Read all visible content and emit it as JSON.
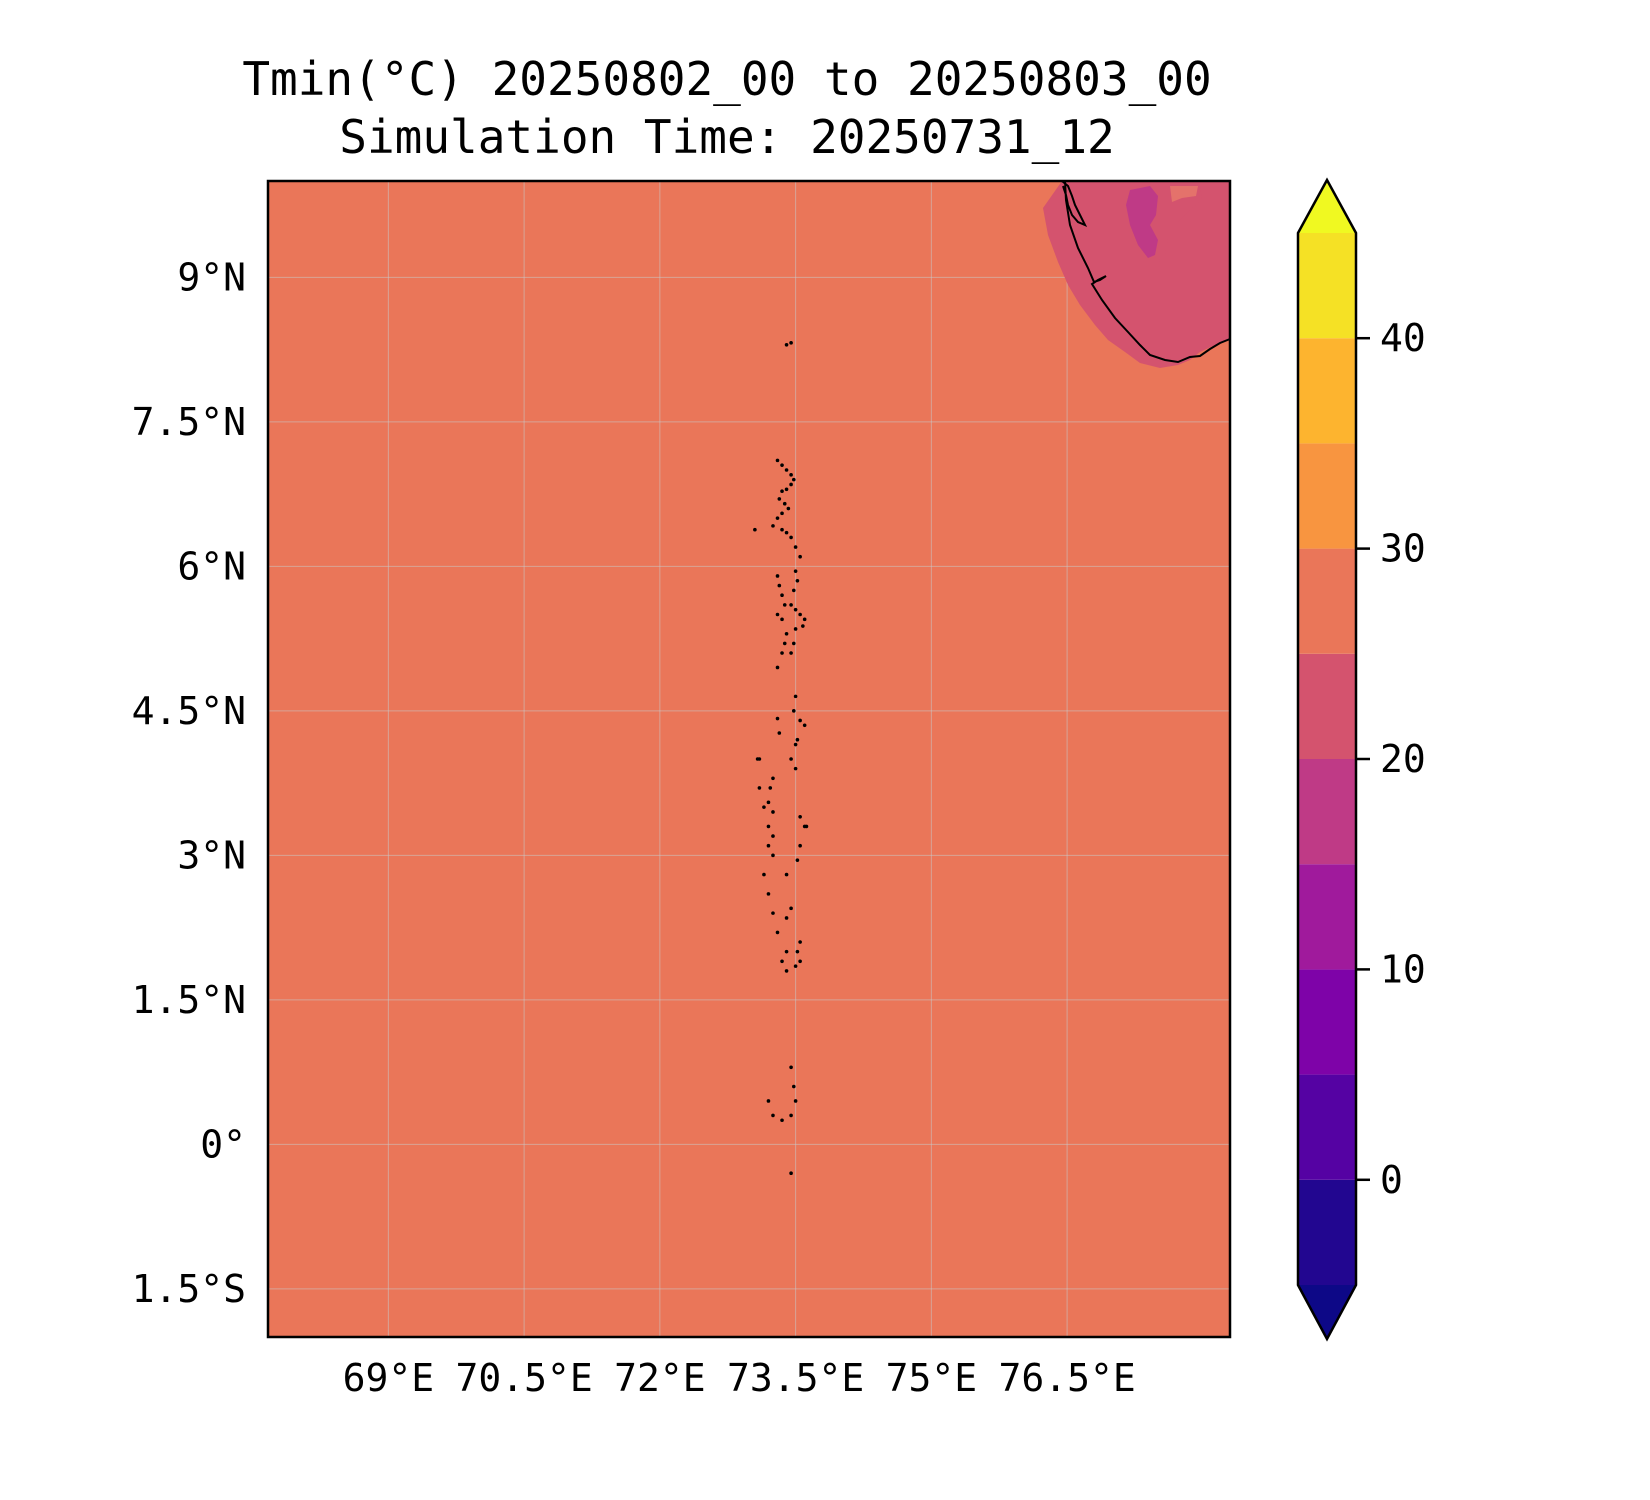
{
  "title": {
    "line1": "Tmin(°C) 20250802_00 to 20250803_00",
    "line2": "Simulation Time: 20250731_12"
  },
  "map": {
    "lon_range": [
      67.67,
      78.3
    ],
    "lat_range": [
      -2.0,
      10.0
    ],
    "background_value_c": 28,
    "land_fill": "#d4536e",
    "land_inner_fill": "#bf3a86",
    "ocean_fill": "#ea7659",
    "coastline_color": "#000000",
    "x_ticks": [
      {
        "lon": 69.0,
        "label": "69°E"
      },
      {
        "lon": 70.5,
        "label": "70.5°E"
      },
      {
        "lon": 72.0,
        "label": "72°E"
      },
      {
        "lon": 73.5,
        "label": "73.5°E"
      },
      {
        "lon": 75.0,
        "label": "75°E"
      },
      {
        "lon": 76.5,
        "label": "76.5°E"
      }
    ],
    "y_ticks": [
      {
        "lat": 9.0,
        "label": "9°N"
      },
      {
        "lat": 7.5,
        "label": "7.5°N"
      },
      {
        "lat": 6.0,
        "label": "6°N"
      },
      {
        "lat": 4.5,
        "label": "4.5°N"
      },
      {
        "lat": 3.0,
        "label": "3°N"
      },
      {
        "lat": 1.5,
        "label": "1.5°N"
      },
      {
        "lat": 0.0,
        "label": "0°"
      },
      {
        "lat": -1.5,
        "label": "1.5°S"
      }
    ],
    "grid": true,
    "grid_color": "#c9c9c9"
  },
  "colorbar": {
    "min": -5,
    "max": 45,
    "extend": "both",
    "orientation": "vertical",
    "levels": [
      {
        "from": -5,
        "to": 0,
        "color": "#220690"
      },
      {
        "from": 0,
        "to": 5,
        "color": "#5502a3"
      },
      {
        "from": 5,
        "to": 10,
        "color": "#7e03a8"
      },
      {
        "from": 10,
        "to": 15,
        "color": "#a01a9c"
      },
      {
        "from": 15,
        "to": 20,
        "color": "#bf3a86"
      },
      {
        "from": 20,
        "to": 25,
        "color": "#d4536e"
      },
      {
        "from": 25,
        "to": 30,
        "color": "#ea7659"
      },
      {
        "from": 30,
        "to": 35,
        "color": "#f89540"
      },
      {
        "from": 35,
        "to": 40,
        "color": "#fdb42f"
      },
      {
        "from": 40,
        "to": 45,
        "color": "#f5e125"
      }
    ],
    "under_color": "#0d0887",
    "over_color": "#f0f921",
    "ticks": [
      {
        "value": 0,
        "label": "0"
      },
      {
        "value": 10,
        "label": "10"
      },
      {
        "value": 20,
        "label": "20"
      },
      {
        "value": 30,
        "label": "30"
      },
      {
        "value": 40,
        "label": "40"
      }
    ]
  },
  "islands": [
    [
      73.4,
      8.3
    ],
    [
      73.45,
      8.32
    ],
    [
      73.3,
      7.1
    ],
    [
      73.35,
      7.05
    ],
    [
      73.4,
      7.0
    ],
    [
      73.45,
      6.95
    ],
    [
      73.48,
      6.9
    ],
    [
      73.45,
      6.85
    ],
    [
      73.4,
      6.8
    ],
    [
      73.35,
      6.78
    ],
    [
      73.32,
      6.7
    ],
    [
      73.38,
      6.65
    ],
    [
      73.42,
      6.6
    ],
    [
      73.35,
      6.55
    ],
    [
      73.3,
      6.5
    ],
    [
      73.25,
      6.42
    ],
    [
      73.35,
      6.38
    ],
    [
      73.4,
      6.35
    ],
    [
      73.45,
      6.3
    ],
    [
      73.5,
      6.2
    ],
    [
      73.55,
      6.1
    ],
    [
      73.3,
      5.9
    ],
    [
      73.32,
      5.8
    ],
    [
      73.35,
      5.7
    ],
    [
      73.38,
      5.6
    ],
    [
      73.3,
      5.5
    ],
    [
      73.35,
      5.45
    ],
    [
      73.4,
      5.3
    ],
    [
      73.38,
      5.2
    ],
    [
      73.35,
      5.1
    ],
    [
      73.3,
      4.95
    ],
    [
      73.5,
      5.95
    ],
    [
      73.52,
      5.85
    ],
    [
      73.48,
      5.75
    ],
    [
      73.45,
      5.6
    ],
    [
      73.5,
      5.55
    ],
    [
      73.55,
      5.5
    ],
    [
      73.6,
      5.45
    ],
    [
      73.58,
      5.38
    ],
    [
      73.5,
      5.35
    ],
    [
      73.48,
      5.2
    ],
    [
      73.45,
      5.1
    ],
    [
      73.5,
      4.65
    ],
    [
      73.48,
      4.5
    ],
    [
      73.55,
      4.4
    ],
    [
      73.6,
      4.35
    ],
    [
      73.52,
      4.2
    ],
    [
      73.5,
      4.15
    ],
    [
      73.45,
      4.0
    ],
    [
      73.5,
      3.9
    ],
    [
      73.3,
      4.42
    ],
    [
      73.32,
      4.27
    ],
    [
      73.1,
      4.0
    ],
    [
      73.25,
      3.8
    ],
    [
      73.22,
      3.7
    ],
    [
      73.2,
      3.55
    ],
    [
      73.15,
      3.5
    ],
    [
      73.25,
      3.45
    ],
    [
      73.2,
      3.3
    ],
    [
      73.25,
      3.2
    ],
    [
      73.2,
      3.1
    ],
    [
      73.25,
      3.0
    ],
    [
      73.15,
      2.8
    ],
    [
      73.2,
      2.6
    ],
    [
      73.25,
      2.4
    ],
    [
      73.3,
      2.2
    ],
    [
      73.55,
      3.4
    ],
    [
      73.6,
      3.3
    ],
    [
      73.55,
      3.1
    ],
    [
      73.52,
      2.95
    ],
    [
      73.4,
      2.8
    ],
    [
      73.45,
      2.45
    ],
    [
      73.4,
      2.35
    ],
    [
      73.55,
      2.1
    ],
    [
      73.52,
      2.0
    ],
    [
      73.55,
      1.9
    ],
    [
      73.5,
      1.85
    ],
    [
      73.4,
      1.8
    ],
    [
      73.35,
      1.9
    ],
    [
      73.4,
      2.0
    ],
    [
      73.45,
      0.8
    ],
    [
      73.48,
      0.6
    ],
    [
      73.5,
      0.45
    ],
    [
      73.45,
      0.3
    ],
    [
      73.35,
      0.25
    ],
    [
      73.25,
      0.3
    ],
    [
      73.2,
      0.45
    ],
    [
      73.45,
      -0.3
    ],
    [
      73.05,
      6.38
    ],
    [
      73.08,
      4.0
    ],
    [
      73.62,
      3.3
    ],
    [
      73.1,
      3.7
    ]
  ]
}
